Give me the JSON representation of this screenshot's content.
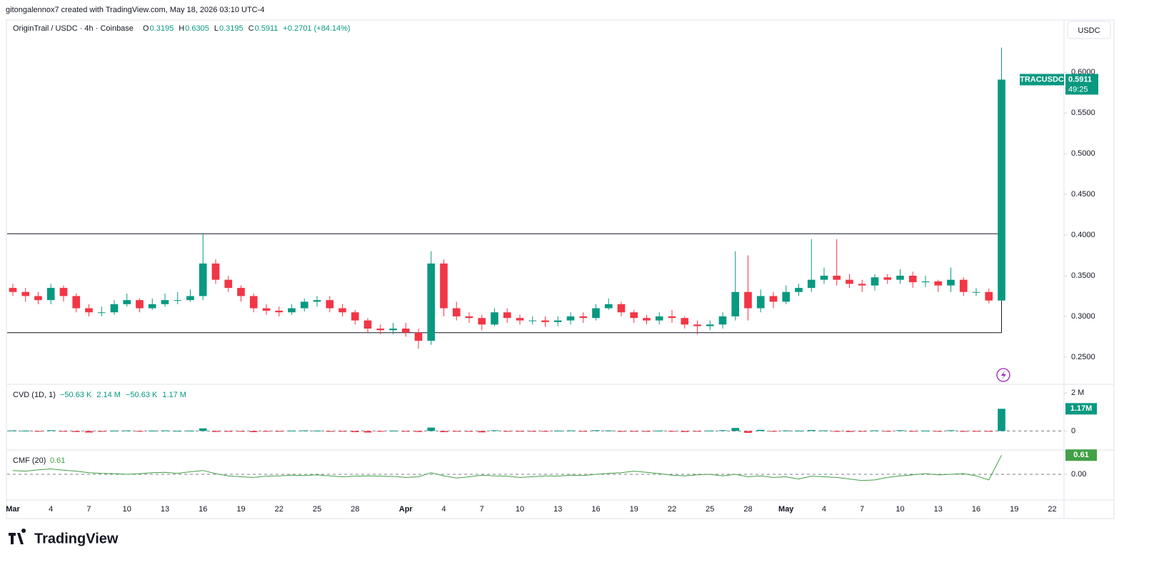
{
  "header": {
    "credit": "gitongalennox7 created with TradingView.com, May 18, 2026 03:10 UTC-4",
    "symbol": "OriginTrail / USDC · 4h · Coinbase",
    "ohlc": [
      {
        "label": "O",
        "value": "0.3195"
      },
      {
        "label": "H",
        "value": "0.6305"
      },
      {
        "label": "L",
        "value": "0.3195"
      },
      {
        "label": "C",
        "value": "0.5911"
      }
    ],
    "change": "+0.2701 (+84.14%)",
    "currency_button": "USDC",
    "price_tag": {
      "symbol": "TRACUSDC",
      "price": "0.5911",
      "countdown": "49:25"
    },
    "brand": "TradingView"
  },
  "chart_data": [
    {
      "type": "candlestick",
      "name": "price",
      "x": [
        0,
        1,
        2,
        3,
        4,
        5,
        6,
        7,
        8,
        9,
        10,
        11,
        12,
        13,
        14,
        15,
        16,
        17,
        18,
        19,
        20,
        21,
        22,
        23,
        24,
        25,
        26,
        27,
        28,
        29,
        30,
        31,
        32,
        33,
        34,
        35,
        36,
        37,
        38,
        39,
        40,
        41,
        42,
        43,
        44,
        45,
        46,
        47,
        48,
        49,
        50,
        51,
        52,
        53,
        54,
        55,
        56,
        57,
        58,
        59,
        60,
        61,
        62,
        63,
        64,
        65,
        66,
        67,
        68,
        69,
        70,
        71,
        72,
        73,
        74,
        75,
        76,
        77,
        78
      ],
      "open": [
        0.335,
        0.33,
        0.325,
        0.32,
        0.335,
        0.325,
        0.31,
        0.305,
        0.305,
        0.315,
        0.32,
        0.31,
        0.315,
        0.32,
        0.32,
        0.325,
        0.365,
        0.345,
        0.335,
        0.325,
        0.31,
        0.307,
        0.305,
        0.31,
        0.318,
        0.32,
        0.31,
        0.305,
        0.295,
        0.285,
        0.283,
        0.285,
        0.28,
        0.27,
        0.365,
        0.31,
        0.3,
        0.298,
        0.29,
        0.305,
        0.298,
        0.295,
        0.295,
        0.293,
        0.295,
        0.3,
        0.298,
        0.31,
        0.315,
        0.305,
        0.298,
        0.295,
        0.3,
        0.298,
        0.29,
        0.288,
        0.29,
        0.3,
        0.33,
        0.31,
        0.325,
        0.318,
        0.33,
        0.335,
        0.345,
        0.35,
        0.345,
        0.34,
        0.338,
        0.348,
        0.345,
        0.35,
        0.342,
        0.343,
        0.338,
        0.345,
        0.33,
        0.33,
        0.3195
      ],
      "high": [
        0.34,
        0.335,
        0.33,
        0.34,
        0.338,
        0.328,
        0.315,
        0.312,
        0.32,
        0.328,
        0.322,
        0.322,
        0.328,
        0.33,
        0.333,
        0.402,
        0.37,
        0.35,
        0.338,
        0.328,
        0.315,
        0.312,
        0.315,
        0.322,
        0.325,
        0.325,
        0.315,
        0.308,
        0.298,
        0.29,
        0.292,
        0.292,
        0.285,
        0.38,
        0.37,
        0.318,
        0.305,
        0.302,
        0.31,
        0.31,
        0.302,
        0.3,
        0.3,
        0.3,
        0.305,
        0.305,
        0.315,
        0.322,
        0.318,
        0.308,
        0.302,
        0.305,
        0.308,
        0.3,
        0.295,
        0.295,
        0.305,
        0.38,
        0.375,
        0.333,
        0.33,
        0.338,
        0.34,
        0.395,
        0.36,
        0.395,
        0.352,
        0.345,
        0.352,
        0.352,
        0.358,
        0.355,
        0.35,
        0.345,
        0.36,
        0.348,
        0.335,
        0.334,
        0.6305
      ],
      "low": [
        0.325,
        0.318,
        0.315,
        0.315,
        0.318,
        0.305,
        0.3,
        0.3,
        0.302,
        0.312,
        0.305,
        0.308,
        0.312,
        0.315,
        0.318,
        0.32,
        0.34,
        0.33,
        0.318,
        0.305,
        0.302,
        0.3,
        0.302,
        0.306,
        0.312,
        0.305,
        0.3,
        0.29,
        0.28,
        0.278,
        0.278,
        0.275,
        0.26,
        0.265,
        0.3,
        0.295,
        0.292,
        0.283,
        0.288,
        0.292,
        0.29,
        0.29,
        0.287,
        0.288,
        0.29,
        0.292,
        0.295,
        0.308,
        0.3,
        0.292,
        0.29,
        0.29,
        0.292,
        0.285,
        0.278,
        0.283,
        0.285,
        0.295,
        0.295,
        0.305,
        0.31,
        0.315,
        0.325,
        0.33,
        0.34,
        0.338,
        0.335,
        0.33,
        0.332,
        0.34,
        0.34,
        0.335,
        0.336,
        0.33,
        0.33,
        0.325,
        0.325,
        0.316,
        0.3195
      ],
      "close": [
        0.33,
        0.325,
        0.32,
        0.335,
        0.325,
        0.31,
        0.305,
        0.305,
        0.315,
        0.32,
        0.31,
        0.315,
        0.32,
        0.32,
        0.325,
        0.365,
        0.345,
        0.335,
        0.325,
        0.31,
        0.307,
        0.305,
        0.31,
        0.318,
        0.32,
        0.31,
        0.305,
        0.295,
        0.285,
        0.283,
        0.285,
        0.28,
        0.27,
        0.365,
        0.31,
        0.3,
        0.298,
        0.29,
        0.305,
        0.298,
        0.295,
        0.295,
        0.293,
        0.295,
        0.3,
        0.298,
        0.31,
        0.315,
        0.305,
        0.298,
        0.295,
        0.3,
        0.298,
        0.29,
        0.288,
        0.29,
        0.3,
        0.33,
        0.31,
        0.325,
        0.318,
        0.33,
        0.335,
        0.345,
        0.35,
        0.345,
        0.34,
        0.338,
        0.348,
        0.345,
        0.35,
        0.342,
        0.343,
        0.338,
        0.345,
        0.33,
        0.33,
        0.3195,
        0.5911
      ],
      "up_color": "#089981",
      "down_color": "#f23645",
      "levels": [
        0.4016,
        0.28
      ],
      "xlim": [
        -0.45,
        82.93
      ],
      "xticks": [
        {
          "value": 0,
          "label": "Mar"
        },
        {
          "value": 3,
          "label": "4"
        },
        {
          "value": 6,
          "label": "7"
        },
        {
          "value": 9,
          "label": "10"
        },
        {
          "value": 12,
          "label": "13"
        },
        {
          "value": 15,
          "label": "16"
        },
        {
          "value": 18,
          "label": "19"
        },
        {
          "value": 21,
          "label": "22"
        },
        {
          "value": 24,
          "label": "25"
        },
        {
          "value": 27,
          "label": "28"
        },
        {
          "value": 31,
          "label": "Apr"
        },
        {
          "value": 34,
          "label": "4"
        },
        {
          "value": 37,
          "label": "7"
        },
        {
          "value": 40,
          "label": "10"
        },
        {
          "value": 43,
          "label": "13"
        },
        {
          "value": 46,
          "label": "16"
        },
        {
          "value": 49,
          "label": "19"
        },
        {
          "value": 52,
          "label": "22"
        },
        {
          "value": 55,
          "label": "25"
        },
        {
          "value": 58,
          "label": "28"
        },
        {
          "value": 61,
          "label": "May"
        },
        {
          "value": 64,
          "label": "4"
        },
        {
          "value": 67,
          "label": "7"
        },
        {
          "value": 70,
          "label": "10"
        },
        {
          "value": 73,
          "label": "13"
        },
        {
          "value": 76,
          "label": "16"
        },
        {
          "value": 79,
          "label": "19"
        },
        {
          "value": 82,
          "label": "22"
        }
      ],
      "ylim": [
        0.2165,
        0.6644
      ],
      "yticks": [
        {
          "value": 0.25,
          "label": "0.2500"
        },
        {
          "value": 0.3,
          "label": "0.3000"
        },
        {
          "value": 0.35,
          "label": "0.3500"
        },
        {
          "value": 0.4,
          "label": "0.4000"
        },
        {
          "value": 0.45,
          "label": "0.4500"
        },
        {
          "value": 0.5,
          "label": "0.5000"
        },
        {
          "value": 0.55,
          "label": "0.5500"
        },
        {
          "value": 0.6,
          "label": "0.6000"
        }
      ]
    },
    {
      "type": "bar",
      "name": "CVD (1D, 1)",
      "legend_values": [
        "−50.63 K",
        "2.14 M",
        "−50.63 K",
        "1.17 M"
      ],
      "badge": "1.17M",
      "values": [
        0.03,
        0.02,
        -0.02,
        0.04,
        -0.03,
        -0.05,
        -0.08,
        -0.04,
        0.02,
        0.03,
        -0.03,
        0.02,
        0.03,
        0.01,
        0.02,
        0.14,
        -0.05,
        -0.04,
        -0.03,
        -0.06,
        -0.03,
        -0.02,
        0.02,
        0.03,
        0.02,
        -0.04,
        -0.03,
        -0.06,
        -0.08,
        -0.03,
        0.02,
        -0.03,
        -0.05,
        0.18,
        -0.06,
        -0.03,
        -0.02,
        -0.07,
        0.04,
        -0.02,
        -0.02,
        -0.01,
        -0.03,
        0.02,
        0.03,
        -0.02,
        0.04,
        0.03,
        -0.04,
        -0.03,
        -0.04,
        0.02,
        -0.02,
        -0.05,
        -0.03,
        0.02,
        0.04,
        0.16,
        -0.1,
        0.06,
        -0.02,
        0.03,
        0.02,
        0.05,
        0.03,
        -0.04,
        -0.05,
        -0.03,
        0.03,
        -0.02,
        0.04,
        -0.03,
        0.02,
        -0.03,
        0.04,
        -0.04,
        -0.02,
        -0.02,
        1.17
      ],
      "up_color": "#089981",
      "down_color": "#f23645",
      "ylim": [
        -1,
        2.46
      ],
      "yticks": [
        0,
        {
          "value": 2,
          "label": "2 M"
        }
      ]
    },
    {
      "type": "line",
      "name": "CMF (20)",
      "legend_values": [
        "0.61"
      ],
      "badge": "0.61",
      "color": "#43a047",
      "values": [
        0.12,
        0.1,
        0.14,
        0.17,
        0.13,
        0.1,
        0.05,
        0.03,
        0.02,
        0.0,
        0.02,
        0.05,
        0.06,
        0.03,
        0.08,
        0.12,
        0.02,
        -0.05,
        -0.08,
        -0.1,
        -0.06,
        -0.05,
        -0.03,
        -0.04,
        -0.02,
        -0.05,
        -0.08,
        -0.06,
        -0.05,
        -0.06,
        -0.07,
        -0.1,
        -0.08,
        0.05,
        -0.05,
        -0.12,
        -0.08,
        -0.03,
        -0.05,
        -0.06,
        -0.1,
        -0.08,
        -0.05,
        -0.06,
        -0.03,
        -0.04,
        0.0,
        0.03,
        0.05,
        0.1,
        0.06,
        0.02,
        -0.03,
        -0.05,
        -0.02,
        0.0,
        -0.05,
        0.0,
        -0.08,
        -0.05,
        -0.1,
        -0.08,
        -0.15,
        -0.06,
        -0.08,
        -0.1,
        -0.15,
        -0.2,
        -0.18,
        -0.1,
        -0.05,
        -0.02,
        0.02,
        -0.02,
        0.0,
        0.02,
        -0.05,
        -0.18,
        0.61
      ],
      "ylim": [
        -0.821,
        0.774
      ],
      "yticks": [
        {
          "value": 0,
          "label": "0.00"
        }
      ]
    }
  ]
}
